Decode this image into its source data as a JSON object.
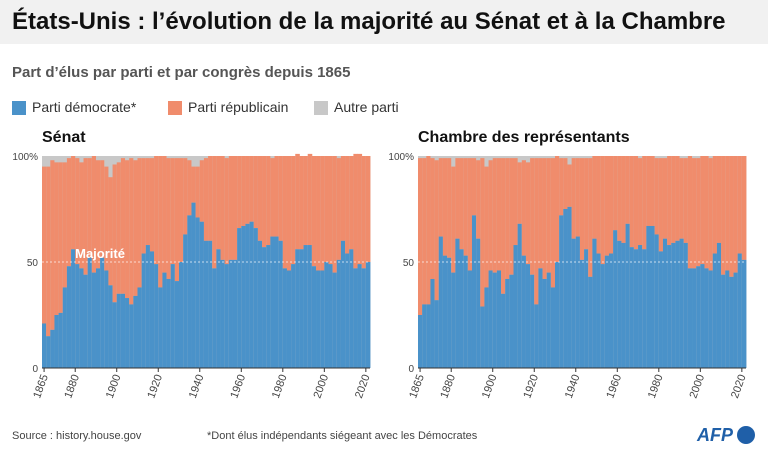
{
  "title": "États-Unis : l’évolution de la majorité au Sénat et à la Chambre",
  "subtitle": "Part d’élus par parti et par congrès depuis 1865",
  "legend": [
    {
      "label": "Parti démocrate*",
      "color": "#4a92c9"
    },
    {
      "label": "Parti républicain",
      "color": "#f08c6c"
    },
    {
      "label": "Autre parti",
      "color": "#c8c8c8"
    }
  ],
  "source": "Source : history.house.gov",
  "footnote": "*Dont élus indépendants siégeant avec les Démocrates",
  "agency": "AFP",
  "majority_label": "Majorité",
  "chart_data": [
    {
      "type": "area",
      "title": "Sénat",
      "x": [
        1865,
        1867,
        1869,
        1871,
        1873,
        1875,
        1877,
        1879,
        1881,
        1883,
        1885,
        1887,
        1889,
        1891,
        1893,
        1895,
        1897,
        1899,
        1901,
        1903,
        1905,
        1907,
        1909,
        1911,
        1913,
        1915,
        1917,
        1919,
        1921,
        1923,
        1925,
        1927,
        1929,
        1931,
        1933,
        1935,
        1937,
        1939,
        1941,
        1943,
        1945,
        1947,
        1949,
        1951,
        1953,
        1955,
        1957,
        1959,
        1961,
        1963,
        1965,
        1967,
        1969,
        1971,
        1973,
        1975,
        1977,
        1979,
        1981,
        1983,
        1985,
        1987,
        1989,
        1991,
        1993,
        1995,
        1997,
        1999,
        2001,
        2003,
        2005,
        2007,
        2009,
        2011,
        2013,
        2015,
        2017,
        2019,
        2021
      ],
      "series": [
        {
          "name": "Parti démocrate*",
          "values": [
            21,
            15,
            18,
            25,
            26,
            38,
            48,
            56,
            49,
            47,
            44,
            52,
            45,
            47,
            52,
            46,
            39,
            31,
            35,
            35,
            33,
            30,
            34,
            38,
            54,
            58,
            55,
            49,
            38,
            45,
            42,
            49,
            41,
            50,
            63,
            72,
            78,
            71,
            69,
            60,
            60,
            47,
            56,
            51,
            49,
            51,
            51,
            66,
            67,
            68,
            69,
            66,
            60,
            57,
            58,
            62,
            62,
            60,
            47,
            46,
            49,
            56,
            56,
            58,
            58,
            48,
            46,
            46,
            50,
            49,
            45,
            51,
            60,
            54,
            56,
            47,
            49,
            47,
            50
          ]
        },
        {
          "name": "Parti républicain",
          "values": [
            74,
            80,
            80,
            72,
            71,
            59,
            51,
            44,
            50,
            50,
            55,
            47,
            55,
            51,
            46,
            49,
            51,
            65,
            62,
            64,
            65,
            69,
            64,
            61,
            45,
            41,
            44,
            51,
            62,
            55,
            57,
            50,
            58,
            49,
            36,
            26,
            17,
            24,
            29,
            39,
            40,
            53,
            44,
            49,
            50,
            49,
            49,
            34,
            33,
            32,
            31,
            34,
            40,
            43,
            42,
            37,
            38,
            40,
            53,
            54,
            51,
            45,
            44,
            42,
            43,
            52,
            54,
            54,
            50,
            51,
            55,
            48,
            40,
            46,
            44,
            54,
            52,
            53,
            50
          ]
        }
      ],
      "ylim": [
        0,
        100
      ],
      "yticks": [
        "0",
        "50",
        "100%"
      ],
      "xticks": [
        "1865",
        "1880",
        "1900",
        "1920",
        "1940",
        "1960",
        "1980",
        "2000",
        "2020"
      ]
    },
    {
      "type": "area",
      "title": "Chambre des représentants",
      "x": [
        1865,
        1867,
        1869,
        1871,
        1873,
        1875,
        1877,
        1879,
        1881,
        1883,
        1885,
        1887,
        1889,
        1891,
        1893,
        1895,
        1897,
        1899,
        1901,
        1903,
        1905,
        1907,
        1909,
        1911,
        1913,
        1915,
        1917,
        1919,
        1921,
        1923,
        1925,
        1927,
        1929,
        1931,
        1933,
        1935,
        1937,
        1939,
        1941,
        1943,
        1945,
        1947,
        1949,
        1951,
        1953,
        1955,
        1957,
        1959,
        1961,
        1963,
        1965,
        1967,
        1969,
        1971,
        1973,
        1975,
        1977,
        1979,
        1981,
        1983,
        1985,
        1987,
        1989,
        1991,
        1993,
        1995,
        1997,
        1999,
        2001,
        2003,
        2005,
        2007,
        2009,
        2011,
        2013,
        2015,
        2017,
        2019,
        2021
      ],
      "series": [
        {
          "name": "Parti démocrate*",
          "values": [
            25,
            30,
            30,
            42,
            32,
            62,
            53,
            52,
            45,
            61,
            56,
            53,
            46,
            72,
            61,
            29,
            38,
            46,
            45,
            46,
            35,
            42,
            44,
            58,
            68,
            53,
            49,
            44,
            30,
            47,
            42,
            45,
            38,
            50,
            72,
            75,
            76,
            61,
            62,
            51,
            56,
            43,
            61,
            54,
            49,
            53,
            54,
            65,
            60,
            59,
            68,
            57,
            56,
            58,
            56,
            67,
            67,
            63,
            55,
            61,
            58,
            59,
            60,
            61,
            59,
            47,
            47,
            48,
            49,
            47,
            46,
            54,
            59,
            44,
            46,
            43,
            45,
            54,
            51
          ]
        },
        {
          "name": "Parti républicain",
          "values": [
            74,
            69,
            70,
            57,
            66,
            37,
            46,
            47,
            50,
            38,
            43,
            46,
            53,
            27,
            37,
            70,
            57,
            52,
            54,
            53,
            64,
            57,
            55,
            41,
            29,
            45,
            48,
            55,
            69,
            52,
            57,
            54,
            61,
            50,
            27,
            24,
            20,
            38,
            37,
            48,
            43,
            56,
            39,
            46,
            51,
            47,
            46,
            35,
            40,
            41,
            32,
            43,
            44,
            41,
            44,
            33,
            33,
            36,
            44,
            38,
            42,
            41,
            40,
            38,
            40,
            53,
            52,
            51,
            51,
            53,
            53,
            46,
            41,
            56,
            54,
            57,
            55,
            46,
            49
          ]
        }
      ],
      "ylim": [
        0,
        100
      ],
      "yticks": [
        "0",
        "50",
        "100%"
      ],
      "xticks": [
        "1865",
        "1880",
        "1900",
        "1920",
        "1940",
        "1960",
        "1980",
        "2000",
        "2020"
      ]
    }
  ]
}
